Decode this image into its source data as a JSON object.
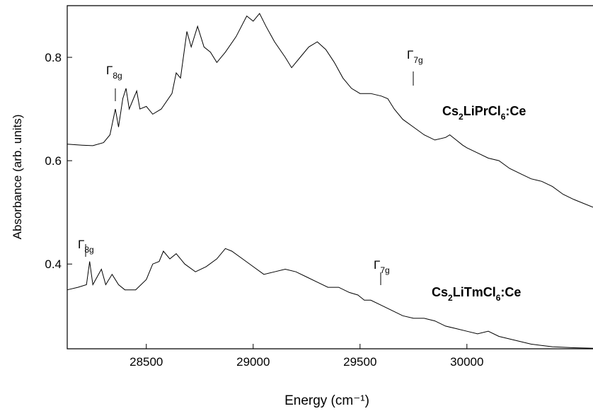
{
  "chart_data": {
    "type": "line",
    "x_label": "Energy (cm⁻¹)",
    "y_label": "Absorbance (arb. units)",
    "xlim": [
      28130,
      30590
    ],
    "xticks": [
      28500,
      29000,
      29500,
      30000
    ],
    "ylim": [
      0.236,
      0.9
    ],
    "yticks": [
      0.4,
      0.6,
      0.8
    ],
    "annotations": [
      "Γ8g",
      "Γ7g",
      "Γ8g",
      "Γ7g"
    ],
    "series": [
      {
        "name": "Cs2LiPrCl6:Ce",
        "color": "#000000",
        "x": [
          28130,
          28200,
          28250,
          28300,
          28330,
          28355,
          28370,
          28390,
          28405,
          28420,
          28440,
          28455,
          28470,
          28500,
          28530,
          28570,
          28620,
          28640,
          28660,
          28690,
          28710,
          28740,
          28770,
          28800,
          28830,
          28870,
          28920,
          28970,
          29000,
          29030,
          29060,
          29100,
          29150,
          29180,
          29220,
          29260,
          29300,
          29340,
          29380,
          29420,
          29460,
          29500,
          29550,
          29600,
          29630,
          29660,
          29700,
          29750,
          29800,
          29850,
          29900,
          29920,
          29950,
          29980,
          30000,
          30050,
          30100,
          30150,
          30200,
          30250,
          30300,
          30350,
          30400,
          30450,
          30500,
          30590
        ],
        "values": [
          0.632,
          0.63,
          0.629,
          0.635,
          0.65,
          0.7,
          0.665,
          0.72,
          0.74,
          0.7,
          0.72,
          0.735,
          0.7,
          0.705,
          0.69,
          0.7,
          0.73,
          0.77,
          0.76,
          0.85,
          0.82,
          0.86,
          0.82,
          0.81,
          0.79,
          0.81,
          0.84,
          0.88,
          0.87,
          0.885,
          0.86,
          0.83,
          0.8,
          0.78,
          0.8,
          0.82,
          0.83,
          0.815,
          0.79,
          0.76,
          0.74,
          0.73,
          0.73,
          0.725,
          0.72,
          0.7,
          0.68,
          0.665,
          0.65,
          0.64,
          0.645,
          0.65,
          0.64,
          0.63,
          0.625,
          0.615,
          0.605,
          0.6,
          0.585,
          0.575,
          0.565,
          0.56,
          0.55,
          0.535,
          0.525,
          0.51
        ]
      },
      {
        "name": "Cs2LiTmCl6:Ce",
        "color": "#000000",
        "x": [
          28130,
          28180,
          28220,
          28235,
          28250,
          28290,
          28310,
          28340,
          28370,
          28400,
          28450,
          28500,
          28530,
          28560,
          28580,
          28610,
          28640,
          28680,
          28730,
          28780,
          28830,
          28870,
          28900,
          28950,
          29000,
          29050,
          29100,
          29150,
          29200,
          29250,
          29300,
          29350,
          29400,
          29450,
          29490,
          29520,
          29550,
          29600,
          29650,
          29700,
          29750,
          29800,
          29850,
          29900,
          29950,
          30000,
          30050,
          30100,
          30150,
          30200,
          30300,
          30400,
          30500,
          30590
        ],
        "values": [
          0.35,
          0.355,
          0.36,
          0.405,
          0.36,
          0.39,
          0.36,
          0.38,
          0.36,
          0.35,
          0.35,
          0.37,
          0.4,
          0.405,
          0.425,
          0.41,
          0.42,
          0.4,
          0.385,
          0.395,
          0.41,
          0.43,
          0.425,
          0.41,
          0.395,
          0.38,
          0.385,
          0.39,
          0.385,
          0.375,
          0.365,
          0.355,
          0.355,
          0.345,
          0.34,
          0.33,
          0.33,
          0.32,
          0.31,
          0.3,
          0.295,
          0.295,
          0.29,
          0.28,
          0.275,
          0.27,
          0.265,
          0.27,
          0.26,
          0.255,
          0.245,
          0.24,
          0.238,
          0.237
        ]
      }
    ]
  }
}
